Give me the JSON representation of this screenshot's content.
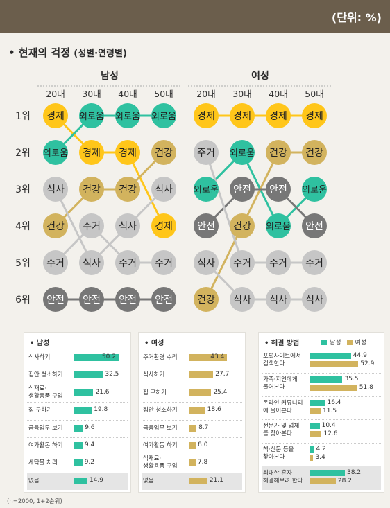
{
  "header": {
    "unit_label": "(단위: %)"
  },
  "section": {
    "title": "• 현재의 걱정",
    "subtitle": "(성별·연령별)"
  },
  "colors": {
    "yellow": "#ffc61a",
    "green": "#2fc1a0",
    "gray": "#c6c6c6",
    "tan": "#d2b35e",
    "darkgray": "#777777",
    "header_brown": "#6b5e4c"
  },
  "chart_data": [
    {
      "type": "table",
      "groups": [
        {
          "name": "남성",
          "ages": [
            "20대",
            "30대",
            "40대",
            "50대"
          ],
          "ranks": [
            [
              "경제",
              "외로움",
              "외로움",
              "외로움"
            ],
            [
              "외로움",
              "경제",
              "경제",
              "건강"
            ],
            [
              "식사",
              "건강",
              "건강",
              "식사"
            ],
            [
              "건강",
              "주거",
              "식사",
              "경제"
            ],
            [
              "주거",
              "식사",
              "주거",
              "주거"
            ],
            [
              "안전",
              "안전",
              "안전",
              "안전"
            ]
          ]
        },
        {
          "name": "여성",
          "ages": [
            "20대",
            "30대",
            "40대",
            "50대"
          ],
          "ranks": [
            [
              "경제",
              "경제",
              "경제",
              "경제"
            ],
            [
              "주거",
              "외로움",
              "건강",
              "건강"
            ],
            [
              "외로움",
              "안전",
              "안전",
              "외로움"
            ],
            [
              "안전",
              "건강",
              "외로움",
              "안전"
            ],
            [
              "식사",
              "주거",
              "주거",
              "주거"
            ],
            [
              "건강",
              "식사",
              "식사",
              "식사"
            ]
          ]
        }
      ],
      "rank_labels": [
        "1위",
        "2위",
        "3위",
        "4위",
        "5위",
        "6위"
      ],
      "topic_colors": {
        "경제": "#ffc61a",
        "외로움": "#2fc1a0",
        "건강": "#d2b35e",
        "안전": "#777777",
        "주거": "#c6c6c6",
        "식사": "#c6c6c6"
      },
      "neutral_color": "#c6c6c6"
    },
    {
      "type": "bar",
      "title": "• 남성",
      "categories": [
        "식사하기",
        "집안 청소하기",
        "식재료·\n생활용품 구입",
        "집 구하기",
        "금융업무 보기",
        "여가활동 하기",
        "세탁물 처리",
        "없음"
      ],
      "values": [
        50.2,
        32.5,
        21.6,
        19.8,
        9.6,
        9.4,
        9.2,
        14.9
      ],
      "color": "#2fc1a0"
    },
    {
      "type": "bar",
      "title": "• 여성",
      "categories": [
        "주거환경 수리",
        "식사하기",
        "집 구하기",
        "집안 청소하기",
        "금융업무 보기",
        "여가활동 하기",
        "식재료·\n생활용품 구입",
        "없음"
      ],
      "values": [
        43.4,
        27.7,
        25.4,
        18.6,
        8.7,
        8.0,
        7.8,
        21.1
      ],
      "color": "#d2b35e"
    },
    {
      "type": "bar",
      "title": "• 해결 방법",
      "categories": [
        "포털사이트에서\n검색한다",
        "가족·지인에게\n물어본다",
        "온라인 커뮤니티\n에 물어본다",
        "전문가 및 업체\n를 찾아본다",
        "책·신문 등을\n찾아본다",
        "최대한 혼자\n해결해보려 한다"
      ],
      "series": [
        {
          "name": "남성",
          "values": [
            44.9,
            35.5,
            16.4,
            10.4,
            4.2,
            38.2
          ],
          "color": "#2fc1a0"
        },
        {
          "name": "여성",
          "values": [
            52.9,
            51.8,
            11.5,
            12.6,
            3.4,
            28.2
          ],
          "color": "#d2b35e"
        }
      ]
    }
  ],
  "footnote": "(n=2000, 1+2순위)"
}
